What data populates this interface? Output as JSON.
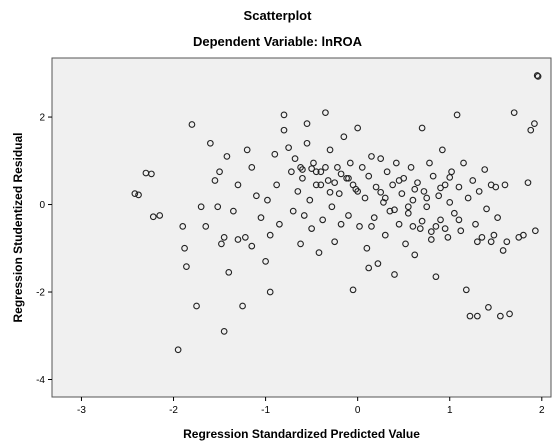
{
  "chart_data": {
    "type": "scatter",
    "title": "Scatterplot",
    "subtitle": "Dependent Variable: lnROA",
    "xlabel": "Regression Standardized Predicted Value",
    "ylabel": "Regression Studentized Residual",
    "xlim": [
      -3.32,
      2.1
    ],
    "ylim": [
      -4.4,
      3.35
    ],
    "xticks": [
      "-3",
      "-2",
      "-1",
      "0",
      "1",
      "2"
    ],
    "yticks": [
      "-4",
      "-2",
      "0",
      "2"
    ],
    "grid": false,
    "colors": {
      "plot_background": "#f0f0f0",
      "marker": "#222222"
    },
    "points": [
      [
        -2.42,
        0.25
      ],
      [
        -2.38,
        0.22
      ],
      [
        -2.3,
        0.72
      ],
      [
        -2.24,
        0.7
      ],
      [
        -2.22,
        -0.28
      ],
      [
        -2.15,
        -0.25
      ],
      [
        -1.9,
        -0.5
      ],
      [
        -1.88,
        -1.0
      ],
      [
        -1.86,
        -1.42
      ],
      [
        -1.95,
        -3.32
      ],
      [
        -1.8,
        1.83
      ],
      [
        -1.75,
        -2.32
      ],
      [
        -1.7,
        -0.05
      ],
      [
        -1.65,
        -0.5
      ],
      [
        -1.6,
        1.4
      ],
      [
        -1.55,
        0.55
      ],
      [
        -1.5,
        0.75
      ],
      [
        -1.52,
        -0.05
      ],
      [
        -1.48,
        -0.9
      ],
      [
        -1.45,
        -0.75
      ],
      [
        -1.45,
        -2.9
      ],
      [
        -1.42,
        1.1
      ],
      [
        -1.4,
        -1.55
      ],
      [
        -1.35,
        -0.15
      ],
      [
        -1.3,
        0.45
      ],
      [
        -1.3,
        -0.8
      ],
      [
        -1.25,
        -2.32
      ],
      [
        -1.22,
        -0.75
      ],
      [
        -1.2,
        1.25
      ],
      [
        -1.15,
        0.85
      ],
      [
        -1.15,
        -0.95
      ],
      [
        -1.1,
        0.2
      ],
      [
        -1.05,
        -0.3
      ],
      [
        -1.0,
        -1.3
      ],
      [
        -0.98,
        0.1
      ],
      [
        -0.95,
        -0.7
      ],
      [
        -0.9,
        1.15
      ],
      [
        -0.88,
        0.45
      ],
      [
        -0.85,
        -0.45
      ],
      [
        -0.8,
        2.05
      ],
      [
        -0.75,
        1.3
      ],
      [
        -0.72,
        0.75
      ],
      [
        -0.7,
        -0.15
      ],
      [
        -0.68,
        1.05
      ],
      [
        -0.65,
        0.3
      ],
      [
        -0.62,
        -0.9
      ],
      [
        -0.6,
        0.6
      ],
      [
        -0.58,
        -0.25
      ],
      [
        -0.55,
        1.85
      ],
      [
        -0.52,
        0.1
      ],
      [
        -0.5,
        -0.55
      ],
      [
        -0.48,
        0.95
      ],
      [
        -0.45,
        0.45
      ],
      [
        -0.42,
        -1.1
      ],
      [
        -0.4,
        0.75
      ],
      [
        -0.38,
        -0.35
      ],
      [
        -0.35,
        2.1
      ],
      [
        -0.32,
        0.55
      ],
      [
        -0.3,
        1.25
      ],
      [
        -0.28,
        -0.05
      ],
      [
        -0.25,
        -0.85
      ],
      [
        -0.22,
        0.85
      ],
      [
        -0.2,
        0.25
      ],
      [
        -0.18,
        -0.45
      ],
      [
        -0.15,
        1.55
      ],
      [
        -0.12,
        0.6
      ],
      [
        -0.1,
        -0.25
      ],
      [
        -0.08,
        0.95
      ],
      [
        -0.05,
        -1.95
      ],
      [
        -0.02,
        0.35
      ],
      [
        0.0,
        1.75
      ],
      [
        0.02,
        -0.5
      ],
      [
        0.05,
        0.85
      ],
      [
        0.08,
        0.15
      ],
      [
        0.1,
        -1.0
      ],
      [
        0.12,
        0.65
      ],
      [
        0.15,
        1.1
      ],
      [
        0.18,
        -0.3
      ],
      [
        0.2,
        0.4
      ],
      [
        0.22,
        -1.35
      ],
      [
        0.25,
        1.05
      ],
      [
        0.28,
        0.05
      ],
      [
        0.3,
        -0.7
      ],
      [
        0.32,
        0.75
      ],
      [
        0.35,
        -0.15
      ],
      [
        0.38,
        0.45
      ],
      [
        0.4,
        -1.6
      ],
      [
        0.42,
        0.95
      ],
      [
        0.45,
        -0.45
      ],
      [
        0.48,
        0.25
      ],
      [
        0.5,
        0.6
      ],
      [
        0.52,
        -0.9
      ],
      [
        0.55,
        -0.2
      ],
      [
        0.58,
        0.85
      ],
      [
        0.6,
        0.1
      ],
      [
        0.62,
        -1.15
      ],
      [
        0.65,
        0.5
      ],
      [
        0.68,
        -0.55
      ],
      [
        0.7,
        1.75
      ],
      [
        0.72,
        0.3
      ],
      [
        0.75,
        -0.05
      ],
      [
        0.78,
        0.95
      ],
      [
        0.8,
        -0.8
      ],
      [
        0.82,
        0.65
      ],
      [
        0.85,
        -1.65
      ],
      [
        0.88,
        0.2
      ],
      [
        0.9,
        -0.35
      ],
      [
        0.92,
        1.25
      ],
      [
        0.95,
        0.45
      ],
      [
        0.98,
        -0.75
      ],
      [
        1.0,
        0.05
      ],
      [
        1.02,
        0.75
      ],
      [
        1.05,
        -0.2
      ],
      [
        1.08,
        2.05
      ],
      [
        1.1,
        0.4
      ],
      [
        1.12,
        -0.6
      ],
      [
        1.15,
        0.95
      ],
      [
        1.18,
        -1.95
      ],
      [
        1.2,
        0.15
      ],
      [
        1.22,
        -2.55
      ],
      [
        1.25,
        0.55
      ],
      [
        1.28,
        -0.45
      ],
      [
        1.3,
        -2.55
      ],
      [
        1.32,
        0.3
      ],
      [
        1.35,
        -0.75
      ],
      [
        1.38,
        0.8
      ],
      [
        1.4,
        -0.1
      ],
      [
        1.42,
        -2.35
      ],
      [
        1.45,
        0.45
      ],
      [
        1.48,
        -0.7
      ],
      [
        1.5,
        0.4
      ],
      [
        1.52,
        -0.3
      ],
      [
        1.55,
        -2.55
      ],
      [
        1.58,
        -1.05
      ],
      [
        1.6,
        0.45
      ],
      [
        1.62,
        -0.85
      ],
      [
        1.65,
        -2.5
      ],
      [
        1.7,
        2.1
      ],
      [
        1.75,
        -0.75
      ],
      [
        1.8,
        -0.7
      ],
      [
        1.85,
        0.5
      ],
      [
        1.88,
        1.7
      ],
      [
        1.92,
        1.85
      ],
      [
        1.95,
        2.95
      ],
      [
        1.96,
        2.93
      ],
      [
        1.93,
        -0.6
      ],
      [
        -0.95,
        -2.0
      ],
      [
        -0.8,
        1.7
      ],
      [
        -0.55,
        1.4
      ],
      [
        0.12,
        -1.45
      ],
      [
        -0.6,
        0.8
      ],
      [
        -0.5,
        0.82
      ],
      [
        -0.45,
        0.75
      ],
      [
        -0.35,
        0.85
      ],
      [
        -0.25,
        0.5
      ],
      [
        -0.3,
        0.28
      ],
      [
        -0.18,
        0.7
      ],
      [
        -0.62,
        0.85
      ],
      [
        0.0,
        0.3
      ],
      [
        0.25,
        0.28
      ],
      [
        0.45,
        0.55
      ],
      [
        0.55,
        -0.05
      ],
      [
        0.62,
        0.35
      ],
      [
        0.7,
        -0.38
      ],
      [
        0.85,
        -0.5
      ],
      [
        0.9,
        0.38
      ],
      [
        0.95,
        -0.55
      ],
      [
        -0.05,
        0.45
      ],
      [
        -0.1,
        0.6
      ],
      [
        -0.4,
        0.45
      ],
      [
        0.15,
        -0.5
      ],
      [
        0.3,
        0.15
      ],
      [
        0.4,
        -0.12
      ],
      [
        0.6,
        -0.5
      ],
      [
        0.75,
        0.15
      ],
      [
        0.8,
        -0.62
      ],
      [
        1.0,
        0.62
      ],
      [
        1.1,
        -0.35
      ],
      [
        1.3,
        -0.85
      ],
      [
        1.45,
        -0.85
      ]
    ]
  }
}
